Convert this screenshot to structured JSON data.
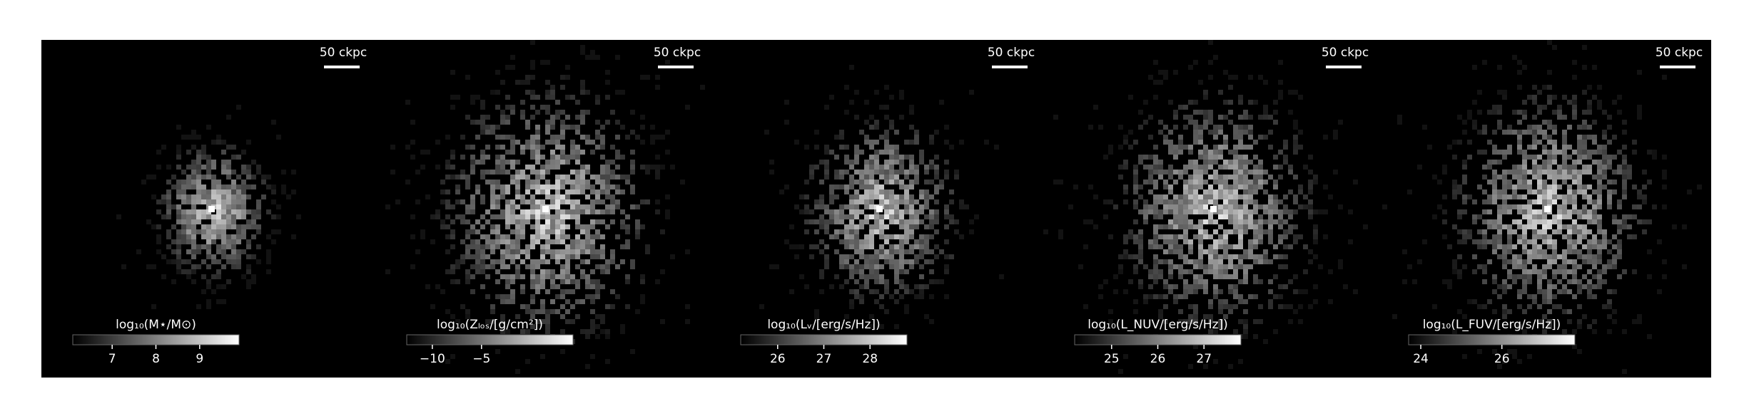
{
  "chart_data": [
    {
      "type": "image",
      "scalebar": "50 ckpc",
      "colorbar": {
        "label": "log₁₀(M⋆/M⊙)",
        "lim": [
          6.1,
          9.9
        ],
        "ticks": [
          7,
          8,
          9
        ]
      }
    },
    {
      "type": "image",
      "scalebar": "50 ckpc",
      "colorbar": {
        "label": "log₁₀(Zₗₒₛ/[g/cm²])",
        "lim": [
          -12.6,
          4.3
        ],
        "ticks": [
          {
            "value": -10,
            "label": "−10"
          },
          {
            "value": -5,
            "label": "−5"
          }
        ]
      }
    },
    {
      "type": "image",
      "scalebar": "50 ckpc",
      "colorbar": {
        "label": "log₁₀(Lᵥ/[erg/s/Hz])",
        "lim": [
          25.2,
          28.8
        ],
        "ticks": [
          26,
          27,
          28
        ]
      }
    },
    {
      "type": "image",
      "scalebar": "50 ckpc",
      "colorbar": {
        "label": "log₁₀(L_NUV/[erg/s/Hz])",
        "lim": [
          24.2,
          27.8
        ],
        "ticks": [
          25,
          26,
          27
        ]
      }
    },
    {
      "type": "image",
      "scalebar": "50 ckpc",
      "colorbar": {
        "label": "log₁₀(L_FUV/[erg/s/Hz])",
        "lim": [
          23.7,
          27.8
        ],
        "ticks": [
          24,
          26
        ]
      }
    }
  ]
}
